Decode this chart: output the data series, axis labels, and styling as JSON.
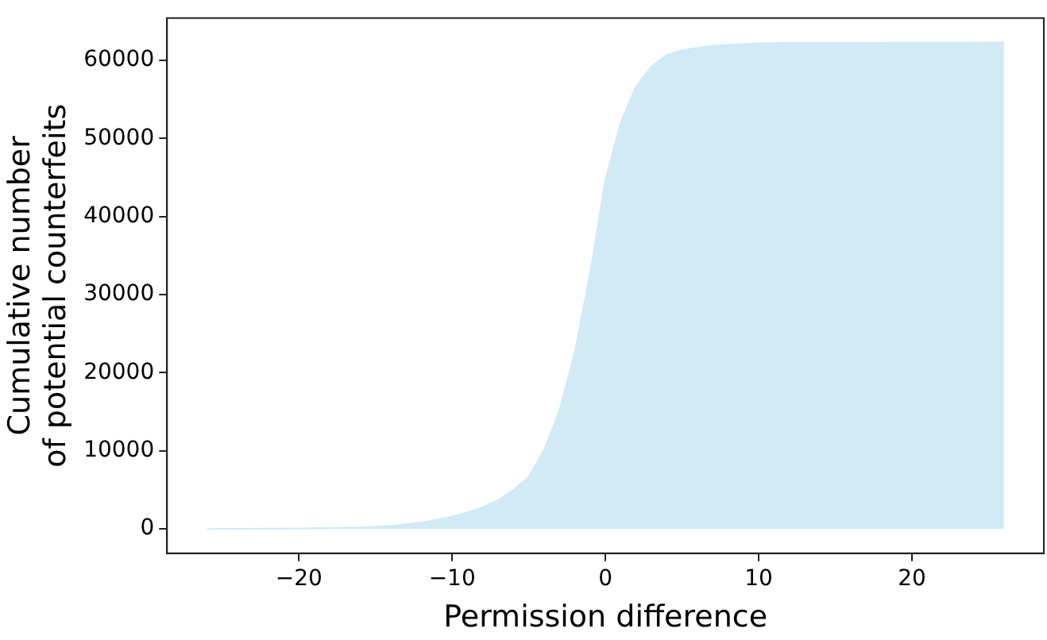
{
  "chart_data": {
    "type": "area",
    "xlabel": "Permission difference",
    "ylabel": "Cumulative number\nof potential counterfeits",
    "x": [
      -26,
      -22,
      -20,
      -18,
      -16,
      -14,
      -12,
      -11,
      -10,
      -9,
      -8,
      -7,
      -6,
      -5,
      -4,
      -3,
      -2,
      -1,
      0,
      1,
      2,
      3,
      4,
      5,
      6,
      7,
      8,
      10,
      12,
      26
    ],
    "series": [
      {
        "color": "#d0eaf6",
        "values": [
          0,
          30,
          60,
          120,
          200,
          400,
          800,
          1200,
          1600,
          2100,
          2800,
          3700,
          5000,
          6700,
          10100,
          15200,
          22600,
          32800,
          44700,
          52100,
          56700,
          59200,
          60700,
          61300,
          61600,
          61850,
          62000,
          62200,
          62250,
          62300
        ]
      }
    ],
    "xlim": [
      -28.6,
      28.6
    ],
    "ylim": [
      -3115,
      65415
    ],
    "xticks": [
      {
        "value": -20,
        "label": "−20"
      },
      {
        "value": -10,
        "label": "−10"
      },
      0,
      10,
      20
    ],
    "yticks": [
      0,
      10000,
      20000,
      30000,
      40000,
      50000,
      60000
    ],
    "grid": false,
    "legend": false
  }
}
